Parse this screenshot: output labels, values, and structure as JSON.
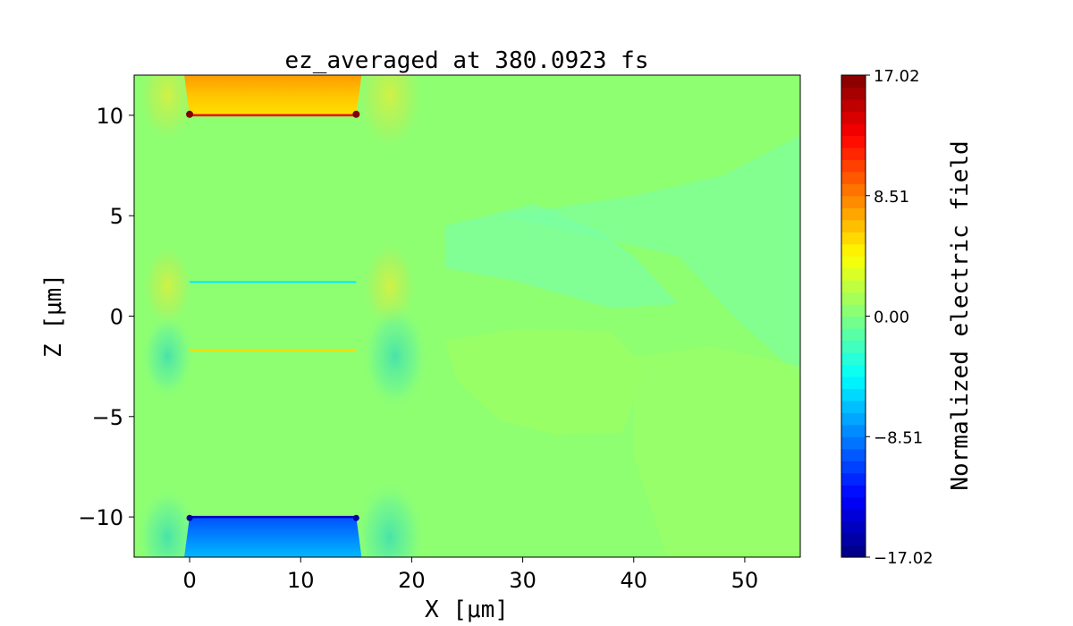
{
  "chart_data": {
    "type": "heatmap",
    "title": "ez_averaged at 380.0923 fs",
    "xlabel": "X [μm]",
    "ylabel": "Z [μm]",
    "xlim": [
      -5,
      55
    ],
    "ylim": [
      -12,
      12
    ],
    "x_ticks": [
      0,
      10,
      20,
      30,
      40,
      50
    ],
    "y_ticks": [
      -10,
      -5,
      0,
      5,
      10
    ],
    "x_tick_labels": [
      "0",
      "10",
      "20",
      "30",
      "40",
      "50"
    ],
    "y_tick_labels": [
      "−10",
      "−5",
      "0",
      "5",
      "10"
    ],
    "colormap": "jet",
    "colorbar": {
      "label": "Normalized electric field",
      "min": -17.02,
      "max": 17.02,
      "ticks": [
        -17.02,
        -8.51,
        0.0,
        8.51,
        17.02
      ],
      "tick_labels": [
        "−17.02",
        "−8.51",
        "0.00",
        "8.51",
        "17.02"
      ]
    },
    "background_value": 0.5,
    "features": [
      {
        "name": "top-electrode-region",
        "x": [
          0,
          15
        ],
        "z": [
          10,
          12
        ],
        "value": 7.5
      },
      {
        "name": "bottom-electrode-region",
        "x": [
          0,
          15
        ],
        "z": [
          -12,
          -10
        ],
        "value": -7.0
      },
      {
        "name": "upper-thin-layer",
        "x": [
          0,
          15
        ],
        "z": [
          1.7,
          1.7
        ],
        "value": -4.5
      },
      {
        "name": "lower-thin-layer",
        "x": [
          0,
          15
        ],
        "z": [
          -1.7,
          -1.7
        ],
        "value": 5.0
      }
    ]
  }
}
